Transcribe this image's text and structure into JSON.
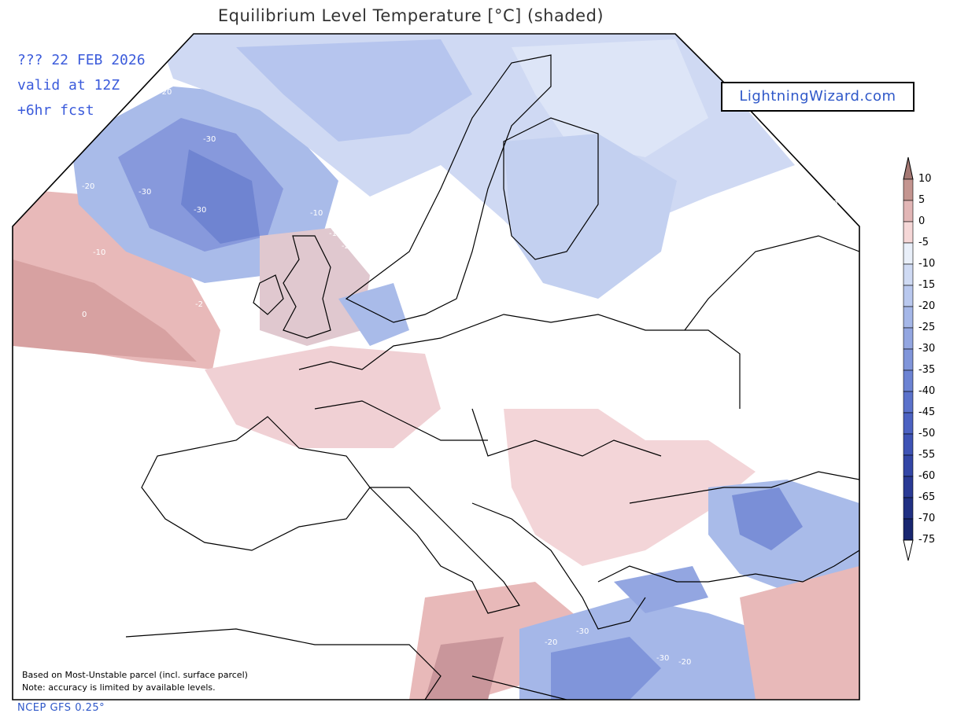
{
  "title": "Equilibrium Level Temperature [°C] (shaded)",
  "run_info": [
    "??? 22 FEB 2026",
    "valid at 12Z",
    "+6hr fcst"
  ],
  "brand": "LightningWizard.com",
  "notes": [
    "Based on Most-Unstable parcel (incl. surface parcel)",
    "Note: accuracy is limited by available levels."
  ],
  "source": "NCEP GFS 0.25°",
  "legend": {
    "levels": [
      "10",
      "5",
      "0",
      "-5",
      "-10",
      "-15",
      "-20",
      "-25",
      "-30",
      "-35",
      "-40",
      "-45",
      "-50",
      "-55",
      "-60",
      "-65",
      "-70",
      "-75"
    ],
    "colors": [
      "#a47873",
      "#c49590",
      "#e2b6b6",
      "#f5d7d7",
      "#e9eff9",
      "#cfdaf3",
      "#b9c8ee",
      "#a5b7e8",
      "#93a6e1",
      "#8095da",
      "#6c83d3",
      "#5b72cb",
      "#4c62c2",
      "#3e53b5",
      "#3346a6",
      "#2a3a95",
      "#203083",
      "#182670"
    ]
  },
  "contour_labels": [
    "-20",
    "-30",
    "-20",
    "-30",
    "-30",
    "-10",
    "-20",
    "-10",
    "0",
    "-2",
    "-10",
    "-20",
    "-30",
    "-20",
    "-30",
    "-20"
  ]
}
